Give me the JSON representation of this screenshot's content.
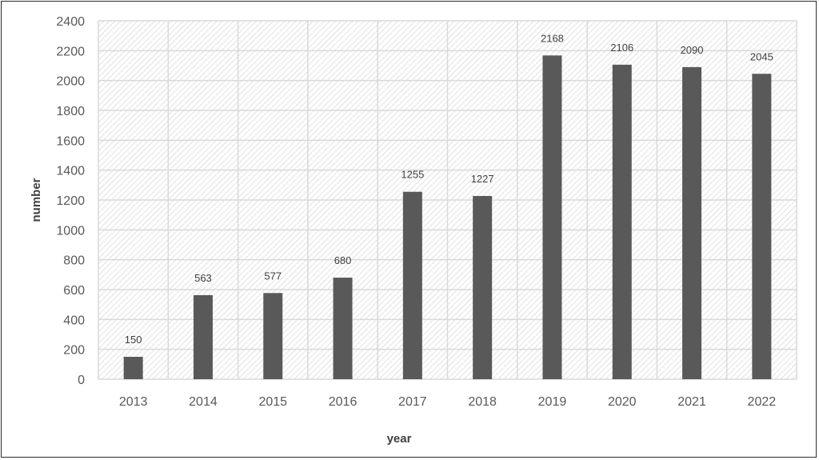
{
  "chart_data": {
    "type": "bar",
    "categories": [
      "2013",
      "2014",
      "2015",
      "2016",
      "2017",
      "2018",
      "2019",
      "2020",
      "2021",
      "2022"
    ],
    "values": [
      150,
      563,
      577,
      680,
      1255,
      1227,
      2168,
      2106,
      2090,
      2045
    ],
    "xlabel": "year",
    "ylabel": "number",
    "ylim": [
      0,
      2400
    ],
    "yticks": [
      "0",
      "200",
      "400",
      "600",
      "800",
      "1000",
      "1200",
      "1400",
      "1600",
      "1800",
      "2000",
      "2200",
      "2400"
    ],
    "grid": true,
    "legend": "none",
    "colors": {
      "bar": "#595959",
      "grid": "#d9d9d9",
      "hatch": "#c8c8c8"
    }
  }
}
